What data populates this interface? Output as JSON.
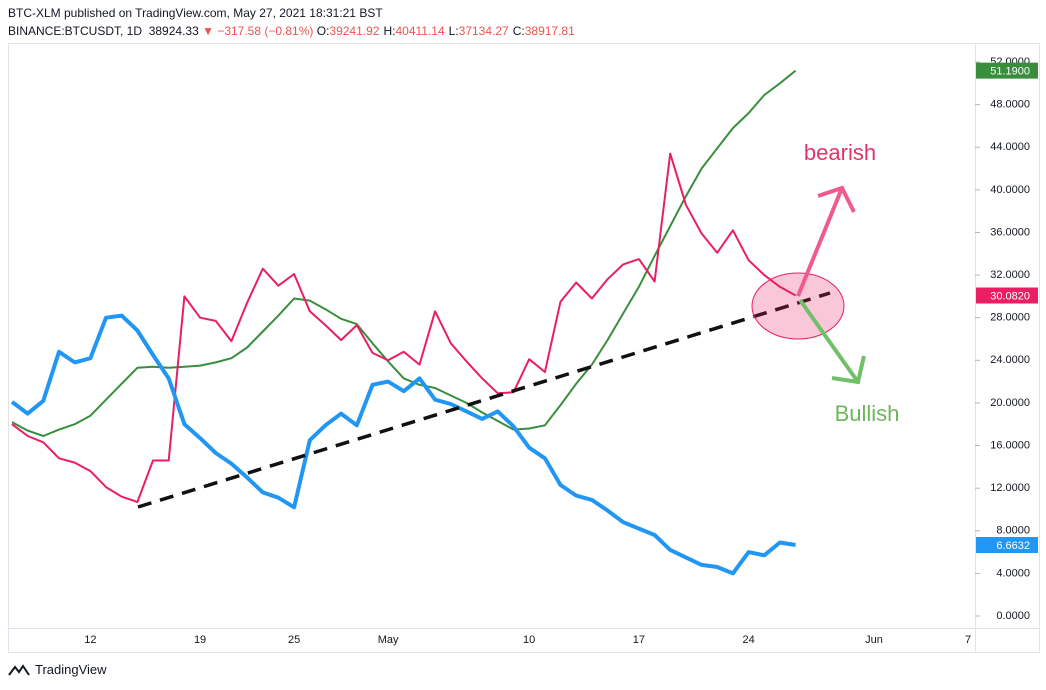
{
  "header": {
    "title": "BTC-XLM published on TradingView.com, May 27, 2021 18:31:21 BST",
    "symbol": "BINANCE:BTCUSDT, 1D",
    "price": 38924.33,
    "change": "▼ −317.58 (−0.81%)",
    "ohlc": [
      {
        "label": "O:",
        "value": 39241.92
      },
      {
        "label": "H:",
        "value": 40411.14
      },
      {
        "label": "L:",
        "value": 37134.27
      },
      {
        "label": "C:",
        "value": 38917.81
      }
    ]
  },
  "chart_data": {
    "type": "line",
    "categories": [
      null,
      null,
      null,
      null,
      null,
      "12",
      null,
      null,
      null,
      null,
      null,
      null,
      "19",
      null,
      null,
      null,
      null,
      null,
      "25",
      null,
      null,
      null,
      null,
      null,
      "May",
      null,
      null,
      null,
      null,
      null,
      null,
      null,
      null,
      "10",
      null,
      null,
      null,
      null,
      null,
      null,
      "17",
      null,
      null,
      null,
      null,
      null,
      null,
      "24",
      null,
      null,
      null,
      null,
      null,
      null,
      null,
      "Jun",
      null,
      null,
      null,
      null,
      null,
      "7"
    ],
    "ylim": [
      0,
      52
    ],
    "yticks": [
      {
        "value": 0,
        "label": "0.0000"
      },
      {
        "value": 4,
        "label": "4.0000"
      },
      {
        "value": 8,
        "label": "8.0000"
      },
      {
        "value": 12,
        "label": "12.0000"
      },
      {
        "value": 16,
        "label": "16.0000"
      },
      {
        "value": 20,
        "label": "20.0000"
      },
      {
        "value": 24,
        "label": "24.0000"
      },
      {
        "value": 28,
        "label": "28.0000"
      },
      {
        "value": 32,
        "label": "32.0000"
      },
      {
        "value": 36,
        "label": "36.0000"
      },
      {
        "value": 40,
        "label": "40.0000"
      },
      {
        "value": 44,
        "label": "44.0000"
      },
      {
        "value": 48,
        "label": "48.0000"
      },
      {
        "value": 52,
        "label": "52.0000"
      }
    ],
    "grid": false,
    "series": [
      {
        "color": "#388e3c",
        "width": 2,
        "values": [
          18.2,
          17.4,
          16.9,
          17.5,
          18.0,
          18.8,
          20.3,
          21.8,
          23.3,
          23.4,
          23.3,
          23.4,
          23.5,
          23.8,
          24.2,
          25.2,
          26.7,
          28.2,
          29.8,
          29.6,
          28.8,
          27.9,
          27.4,
          25.6,
          23.9,
          22.3,
          21.7,
          21.4,
          20.7,
          20.0,
          19.1,
          18.3,
          17.5,
          17.6,
          17.9,
          19.8,
          21.8,
          23.6,
          25.9,
          28.4,
          30.9,
          33.8,
          36.6,
          39.4,
          42.0,
          43.9,
          45.8,
          47.2,
          48.9,
          50.0,
          51.19,
          null,
          null,
          null,
          null,
          null,
          null,
          null,
          null,
          null,
          null,
          null
        ],
        "value_labels": [
          null,
          null,
          null,
          null,
          null,
          null,
          null,
          null,
          null,
          null,
          null,
          null,
          null,
          null,
          null,
          null,
          null,
          null,
          null,
          null,
          null,
          null,
          null,
          null,
          null,
          null,
          null,
          null,
          null,
          null,
          null,
          null,
          null,
          null,
          null,
          null,
          null,
          null,
          null,
          null,
          null,
          null,
          null,
          null,
          null,
          null,
          null,
          null,
          null,
          null,
          "51.1900",
          null,
          null,
          null,
          null,
          null,
          null,
          null,
          null,
          null,
          null,
          null
        ]
      },
      {
        "color": "#e91e63",
        "width": 2,
        "values": [
          18.0,
          16.9,
          16.3,
          14.8,
          14.4,
          13.6,
          12.1,
          11.2,
          10.7,
          14.6,
          14.6,
          30.0,
          28.0,
          27.7,
          25.8,
          29.4,
          32.6,
          31.0,
          32.1,
          28.6,
          27.3,
          25.9,
          27.3,
          24.7,
          24.0,
          24.8,
          23.6,
          28.6,
          25.6,
          23.9,
          22.3,
          20.9,
          21.0,
          24.1,
          22.9,
          29.5,
          31.3,
          29.8,
          31.6,
          33.0,
          33.5,
          31.4,
          43.4,
          38.6,
          35.9,
          34.1,
          36.2,
          33.4,
          32.0,
          30.9,
          30.082,
          null,
          null,
          null,
          null,
          null,
          null,
          null,
          null,
          null,
          null,
          null
        ],
        "value_labels": [
          null,
          null,
          null,
          null,
          null,
          null,
          null,
          null,
          null,
          null,
          null,
          null,
          null,
          null,
          null,
          null,
          null,
          null,
          null,
          null,
          null,
          null,
          null,
          null,
          null,
          null,
          null,
          null,
          null,
          null,
          null,
          null,
          null,
          null,
          null,
          null,
          null,
          null,
          null,
          null,
          null,
          null,
          null,
          null,
          null,
          null,
          null,
          null,
          null,
          null,
          "30.0820",
          null,
          null,
          null,
          null,
          null,
          null,
          null,
          null,
          null,
          null,
          null
        ]
      },
      {
        "color": "#2196f3",
        "width": 4,
        "values": [
          20.1,
          19.0,
          20.2,
          24.8,
          23.8,
          24.2,
          28.0,
          28.2,
          26.8,
          24.5,
          22.3,
          18.0,
          16.7,
          15.3,
          14.3,
          13.0,
          11.6,
          11.1,
          10.2,
          16.5,
          17.9,
          19.0,
          17.9,
          21.7,
          22.0,
          21.1,
          22.3,
          20.3,
          19.9,
          19.2,
          18.5,
          19.2,
          17.8,
          15.8,
          14.8,
          12.3,
          11.3,
          10.9,
          9.9,
          8.8,
          8.2,
          7.6,
          6.2,
          5.5,
          4.8,
          4.6,
          4.0,
          6.0,
          5.7,
          6.9,
          6.6632,
          null,
          null,
          null,
          null,
          null,
          null,
          null,
          null,
          null,
          null,
          null
        ],
        "value_labels": [
          null,
          null,
          null,
          null,
          null,
          null,
          null,
          null,
          null,
          null,
          null,
          null,
          null,
          null,
          null,
          null,
          null,
          null,
          null,
          null,
          null,
          null,
          null,
          null,
          null,
          null,
          null,
          null,
          null,
          null,
          null,
          null,
          null,
          null,
          null,
          null,
          null,
          null,
          null,
          null,
          null,
          null,
          null,
          null,
          null,
          null,
          null,
          null,
          null,
          null,
          "6.6632",
          null,
          null,
          null,
          null,
          null,
          null,
          null,
          null,
          null,
          null,
          null
        ]
      }
    ],
    "annotations": [
      {
        "text": "bearish",
        "color": "#e0356a"
      },
      {
        "text": "Bullish",
        "color": "#6cb75c"
      }
    ]
  },
  "footer": {
    "brand": "TradingView"
  }
}
